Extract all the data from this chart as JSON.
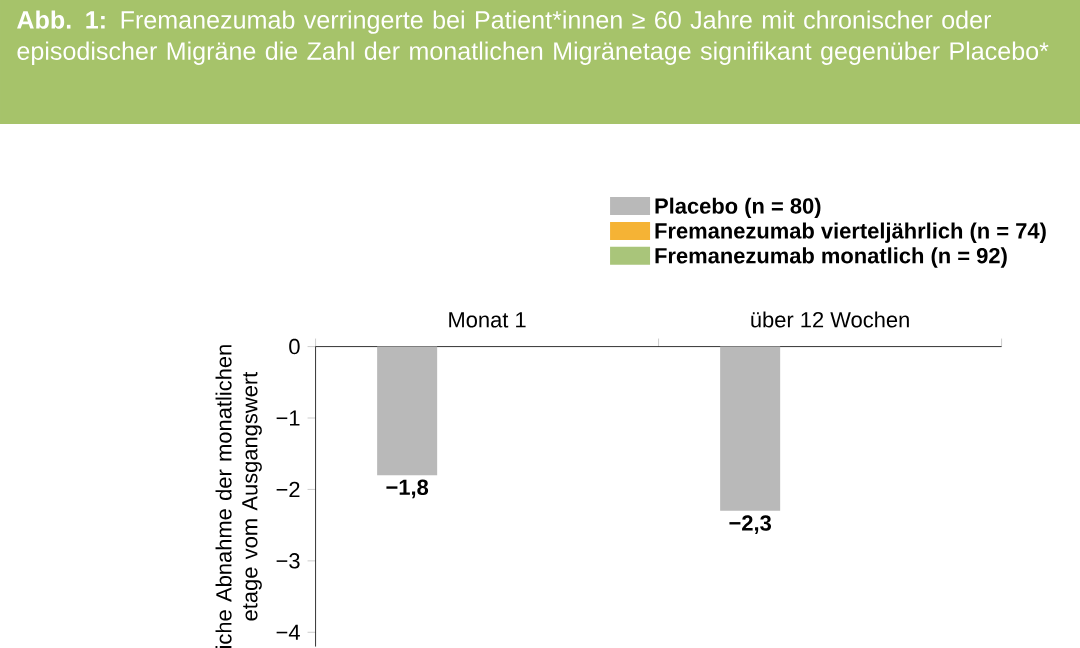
{
  "chart_data": {
    "type": "bar",
    "title": "**Abb. 1:** Fremanezumab verringerte bei Patient*innen ≥ 60 Jahre mit chronischer oder episodischer Migräne die Zahl der monatlichen Migränetage signifikant gegenüber Placebo*",
    "ylabel": "iche Abnahme der monatlichen etage vom Ausgangswert",
    "categories": [
      "Monat 1",
      "über 12 Wochen"
    ],
    "series": [
      {
        "name": "Placebo (n = 80)",
        "color": "#b9b9b9",
        "values": [
          -1.8,
          -2.3
        ],
        "value_labels": [
          "−1,8",
          "−2,3"
        ]
      },
      {
        "name": "Fremanezumab vierteljährlich (n = 74)",
        "color": "#f5b335",
        "values": [
          null,
          null
        ]
      },
      {
        "name": "Fremanezumab monatlich (n = 92)",
        "color": "#a9c57a",
        "values": [
          null,
          null
        ]
      }
    ],
    "ylim": [
      -4.2,
      0
    ],
    "yticks": [
      0,
      {
        "value": -1,
        "label": "−1"
      },
      {
        "value": -2,
        "label": "−2"
      },
      {
        "value": -3,
        "label": "−3"
      },
      {
        "value": -4,
        "label": "−4"
      }
    ],
    "legend": "top",
    "grid": false
  }
}
